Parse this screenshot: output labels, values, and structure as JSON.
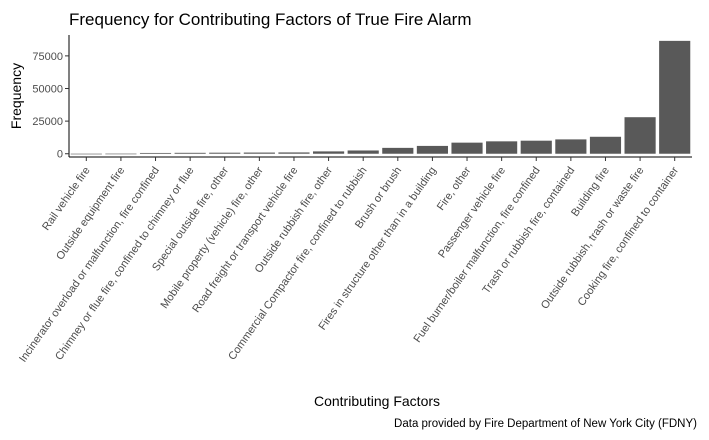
{
  "chart_data": {
    "type": "bar",
    "title": "Frequency for Contributing Factors of True Fire Alarm",
    "xlabel": "Contributing Factors",
    "ylabel": "Frequency",
    "caption": "Data provided by Fire Department of New York City (FDNY)",
    "ylim": [
      -2500,
      91000
    ],
    "yticks": [
      0,
      25000,
      50000,
      75000
    ],
    "ytick_labels": [
      "0",
      "25000",
      "50000",
      "75000"
    ],
    "grid": false,
    "legend": "none",
    "bar_color": "#595959",
    "categories": [
      "Rail vehicle fire",
      "Outside equipment fire",
      "Incinerator overload or malfunction, fire confined",
      "Chimney or flue fire, confined to chimney or flue",
      "Special outside fire, other",
      "Mobile property (vehicle) fire, other",
      "Road freight or transport vehicle fire",
      "Outside rubbish fire, other",
      "Commercial Compactor fire, confined to rubbish",
      "Brush or brush",
      "Fires in structure other than in a building",
      "Fire, other",
      "Passenger vehicle fire",
      "Fuel burner/boiler malfunction, fire confined",
      "Trash or rubbish fire, contained",
      "Building fire",
      "Outside rubbish, trash or waste fire",
      "Cooking fire, confined to container"
    ],
    "values": [
      10,
      60,
      600,
      700,
      800,
      900,
      1000,
      1800,
      2500,
      4500,
      6000,
      8500,
      9500,
      10000,
      11000,
      13000,
      28000,
      86500
    ]
  }
}
